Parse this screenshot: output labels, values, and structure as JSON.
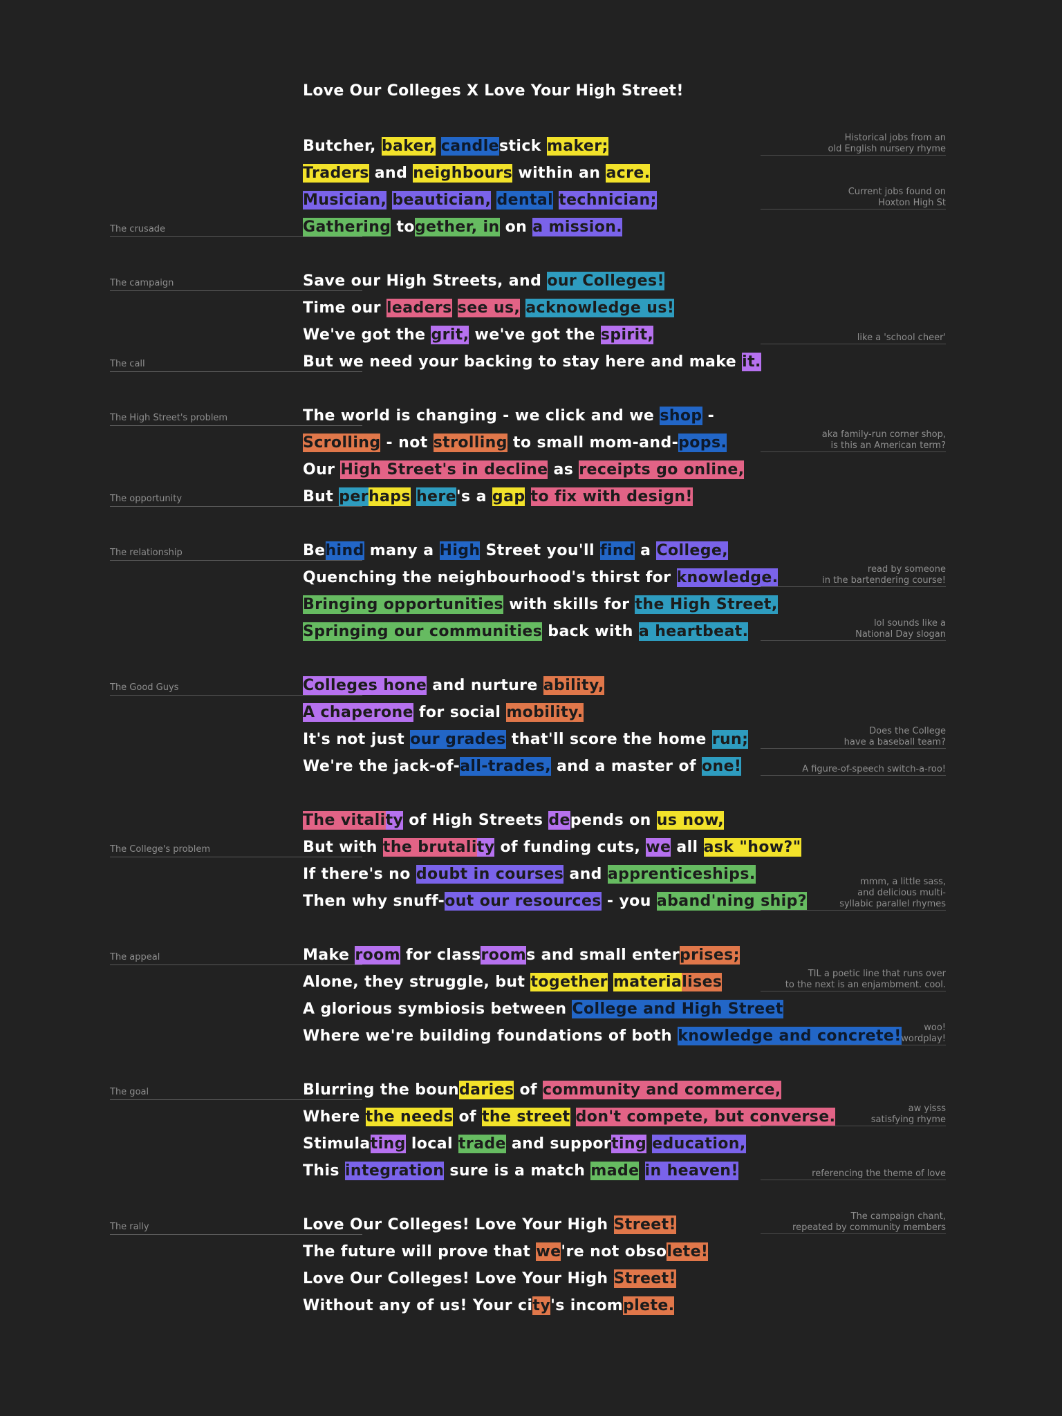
{
  "title": "Love Our Colleges X Love Your High Street!",
  "colors": {
    "yellow": "#f2e22a",
    "blue": "#2266c7",
    "indigo": "#7a63ea",
    "green": "#66bb61",
    "teal": "#2e9cbf",
    "pink": "#e26386",
    "purple": "#b671ef",
    "orange": "#e0774a"
  },
  "lines": [
    [
      {
        "t": "Butcher, "
      },
      {
        "t": "baker,",
        "c": "yellow"
      },
      {
        "t": " "
      },
      {
        "t": "candle",
        "c": "blue"
      },
      {
        "t": "stick "
      },
      {
        "t": "maker;",
        "c": "yellow"
      }
    ],
    [
      {
        "t": "Traders",
        "c": "yellow"
      },
      {
        "t": " and "
      },
      {
        "t": "neighbours",
        "c": "yellow"
      },
      {
        "t": " within an "
      },
      {
        "t": "acre.",
        "c": "yellow"
      }
    ],
    [
      {
        "t": "Musician,",
        "c": "indigo"
      },
      {
        "t": " "
      },
      {
        "t": "beautician,",
        "c": "indigo"
      },
      {
        "t": " "
      },
      {
        "t": "dental",
        "c": "blue"
      },
      {
        "t": " "
      },
      {
        "t": "technician;",
        "c": "indigo"
      }
    ],
    [
      {
        "t": "Gathering",
        "c": "green"
      },
      {
        "t": " to"
      },
      {
        "t": "gether, in",
        "c": "green"
      },
      {
        "t": " on "
      },
      {
        "t": "a mission.",
        "c": "indigo"
      }
    ],
    [
      {
        "t": "Save our High Streets, and "
      },
      {
        "t": "our Colleges!",
        "c": "teal"
      }
    ],
    [
      {
        "t": "Time our "
      },
      {
        "t": "leaders",
        "c": "pink"
      },
      {
        "t": " "
      },
      {
        "t": "see us,",
        "c": "pink"
      },
      {
        "t": " "
      },
      {
        "t": "acknowledge us!",
        "c": "teal"
      }
    ],
    [
      {
        "t": "We've got the "
      },
      {
        "t": "grit,",
        "c": "purple"
      },
      {
        "t": " we've got the "
      },
      {
        "t": "spirit,",
        "c": "purple"
      }
    ],
    [
      {
        "t": "But we need your backing to stay here and make "
      },
      {
        "t": "it.",
        "c": "purple"
      }
    ],
    [
      {
        "t": "The world is changing - we click and we "
      },
      {
        "t": "shop",
        "c": "blue"
      },
      {
        "t": " -"
      }
    ],
    [
      {
        "t": "Scrolling",
        "c": "orange"
      },
      {
        "t": " - not "
      },
      {
        "t": "strolling",
        "c": "orange"
      },
      {
        "t": " to small mom-and-"
      },
      {
        "t": "pops.",
        "c": "blue"
      }
    ],
    [
      {
        "t": "Our "
      },
      {
        "t": "High Street's in decline",
        "c": "pink"
      },
      {
        "t": " as "
      },
      {
        "t": "receipts go online,",
        "c": "pink"
      }
    ],
    [
      {
        "t": "But "
      },
      {
        "t": "per",
        "c": "teal"
      },
      {
        "t": "haps",
        "c": "yellow"
      },
      {
        "t": " "
      },
      {
        "t": "here",
        "c": "teal"
      },
      {
        "t": "'s a "
      },
      {
        "t": "gap",
        "c": "yellow"
      },
      {
        "t": " "
      },
      {
        "t": "to fix with design!",
        "c": "pink"
      }
    ],
    [
      {
        "t": "Be"
      },
      {
        "t": "hind",
        "c": "blue"
      },
      {
        "t": " many a "
      },
      {
        "t": "High",
        "c": "blue"
      },
      {
        "t": " Street you'll "
      },
      {
        "t": "find",
        "c": "blue"
      },
      {
        "t": " a "
      },
      {
        "t": "College,",
        "c": "indigo"
      }
    ],
    [
      {
        "t": "Quenching the neighbourhood's thirst for "
      },
      {
        "t": "knowledge.",
        "c": "indigo"
      }
    ],
    [
      {
        "t": "Bringing opportunities",
        "c": "green"
      },
      {
        "t": " with skills for "
      },
      {
        "t": "the High Street,",
        "c": "teal"
      }
    ],
    [
      {
        "t": "Springing our communities",
        "c": "green"
      },
      {
        "t": " back with "
      },
      {
        "t": "a heartbeat.",
        "c": "teal"
      }
    ],
    [
      {
        "t": "Colleges hone",
        "c": "purple"
      },
      {
        "t": " and nurture "
      },
      {
        "t": "ability,",
        "c": "orange"
      }
    ],
    [
      {
        "t": "A chaperone",
        "c": "purple"
      },
      {
        "t": " for social "
      },
      {
        "t": "mobility.",
        "c": "orange"
      }
    ],
    [
      {
        "t": "It's not just "
      },
      {
        "t": "our grades",
        "c": "blue"
      },
      {
        "t": " that'll score the home "
      },
      {
        "t": "run;",
        "c": "teal"
      }
    ],
    [
      {
        "t": "We're the jack-of-"
      },
      {
        "t": "all-trades,",
        "c": "blue"
      },
      {
        "t": " and a master of "
      },
      {
        "t": "one!",
        "c": "teal"
      }
    ],
    [
      {
        "t": "The vitali",
        "c": "pink"
      },
      {
        "t": "ty",
        "c": "purple"
      },
      {
        "t": " of High Streets "
      },
      {
        "t": "de",
        "c": "purple"
      },
      {
        "t": "pends on "
      },
      {
        "t": "us now,",
        "c": "yellow"
      }
    ],
    [
      {
        "t": "But with "
      },
      {
        "t": "the brutali",
        "c": "pink"
      },
      {
        "t": "ty",
        "c": "purple"
      },
      {
        "t": " of funding cuts, "
      },
      {
        "t": "we",
        "c": "purple"
      },
      {
        "t": " all "
      },
      {
        "t": "ask \"how?\"",
        "c": "yellow"
      }
    ],
    [
      {
        "t": "If there's no "
      },
      {
        "t": "doubt in courses",
        "c": "indigo"
      },
      {
        "t": " and "
      },
      {
        "t": "apprenticeships.",
        "c": "green"
      }
    ],
    [
      {
        "t": "Then why snuff-"
      },
      {
        "t": "out our resources",
        "c": "indigo"
      },
      {
        "t": " - you "
      },
      {
        "t": "aband'ning ship?",
        "c": "green"
      }
    ],
    [
      {
        "t": "Make "
      },
      {
        "t": "room",
        "c": "purple"
      },
      {
        "t": " for class"
      },
      {
        "t": "room",
        "c": "purple"
      },
      {
        "t": "s and small enter"
      },
      {
        "t": "prises; ",
        "c": "orange"
      }
    ],
    [
      {
        "t": "Alone, they struggle, but "
      },
      {
        "t": "together",
        "c": "yellow"
      },
      {
        "t": " "
      },
      {
        "t": "materia",
        "c": "yellow"
      },
      {
        "t": "lises",
        "c": "orange"
      }
    ],
    [
      {
        "t": "A glorious symbiosis between "
      },
      {
        "t": "College and High Street",
        "c": "blue"
      }
    ],
    [
      {
        "t": "Where we're building foundations of both "
      },
      {
        "t": "knowledge and concrete!",
        "c": "blue"
      }
    ],
    [
      {
        "t": "Blurring the boun"
      },
      {
        "t": "daries",
        "c": "yellow"
      },
      {
        "t": " of "
      },
      {
        "t": "community and commerce,",
        "c": "pink"
      }
    ],
    [
      {
        "t": "Where "
      },
      {
        "t": "the needs",
        "c": "yellow"
      },
      {
        "t": " of "
      },
      {
        "t": "the street",
        "c": "yellow"
      },
      {
        "t": " "
      },
      {
        "t": "don't compete, but converse.",
        "c": "pink"
      }
    ],
    [
      {
        "t": "Stimula"
      },
      {
        "t": "ting",
        "c": "purple"
      },
      {
        "t": " local "
      },
      {
        "t": "trade",
        "c": "green"
      },
      {
        "t": " and suppor"
      },
      {
        "t": "ting",
        "c": "purple"
      },
      {
        "t": " "
      },
      {
        "t": "education,",
        "c": "indigo"
      }
    ],
    [
      {
        "t": "This "
      },
      {
        "t": "integration",
        "c": "indigo"
      },
      {
        "t": " sure is a match "
      },
      {
        "t": "made",
        "c": "green"
      },
      {
        "t": " "
      },
      {
        "t": "in heaven!",
        "c": "indigo"
      }
    ],
    [
      {
        "t": "Love Our Colleges! Love Your High "
      },
      {
        "t": "Street!",
        "c": "orange"
      }
    ],
    [
      {
        "t": "The future will prove that "
      },
      {
        "t": "we",
        "c": "orange"
      },
      {
        "t": "'re not obso"
      },
      {
        "t": "lete!",
        "c": "orange"
      }
    ],
    [
      {
        "t": "Love Our Colleges! Love Your High "
      },
      {
        "t": "Street!",
        "c": "orange"
      }
    ],
    [
      {
        "t": "Without any of us! Your ci"
      },
      {
        "t": "ty",
        "c": "orange"
      },
      {
        "t": "'s incom"
      },
      {
        "t": "plete.",
        "c": "orange"
      }
    ]
  ],
  "section_labels": [
    {
      "text": "The crusade",
      "line": 3
    },
    {
      "text": "The campaign",
      "line": 4
    },
    {
      "text": "The call",
      "line": 7
    },
    {
      "text": "The High Street's problem",
      "line": 8
    },
    {
      "text": "The opportunity",
      "line": 11
    },
    {
      "text": "The relationship",
      "line": 12
    },
    {
      "text": "The Good Guys",
      "line": 16
    },
    {
      "text": "The College's problem",
      "line": 21
    },
    {
      "text": "The appeal",
      "line": 24
    },
    {
      "text": "The goal",
      "line": 28
    },
    {
      "text": "The rally",
      "line": 32
    }
  ],
  "notes": [
    {
      "lines": [
        "Historical jobs from an",
        "old English nursery rhyme"
      ],
      "line": 0
    },
    {
      "lines": [
        "Current jobs found on",
        "Hoxton High St"
      ],
      "line": 2
    },
    {
      "lines": [
        "like a 'school cheer'"
      ],
      "line": 6
    },
    {
      "lines": [
        "aka family-run corner shop,",
        "is this an American term?"
      ],
      "line": 9
    },
    {
      "lines": [
        "read by someone",
        "in the bartendering course!"
      ],
      "line": 13
    },
    {
      "lines": [
        "lol sounds like a",
        "National Day slogan"
      ],
      "line": 15
    },
    {
      "lines": [
        "Does the College",
        "have a baseball team?"
      ],
      "line": 18
    },
    {
      "lines": [
        "A figure-of-speech switch-a-roo!"
      ],
      "line": 19
    },
    {
      "lines": [
        "mmm, a little sass,",
        "and delicious multi-",
        "syllabic parallel rhymes"
      ],
      "line": 23
    },
    {
      "lines": [
        "TIL a poetic line that runs over",
        "to the next is an enjambment. cool."
      ],
      "line": 25
    },
    {
      "lines": [
        "woo!",
        "wordplay!"
      ],
      "line": 27
    },
    {
      "lines": [
        "aw yisss",
        "satisfying rhyme"
      ],
      "line": 29
    },
    {
      "lines": [
        "referencing the theme of love"
      ],
      "line": 31
    },
    {
      "lines": [
        "The campaign chant,",
        "repeated by community members"
      ],
      "line": 32
    }
  ]
}
